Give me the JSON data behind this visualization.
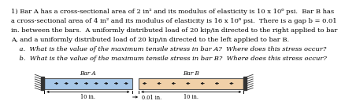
{
  "text_block": [
    "1) Bar A has a cross-sectional area of 2 in² and its modulus of elasticity is 10 x 10⁶ psi.  Bar B has",
    "a cross-sectional area of 4 in² and its modulus of elasticity is 16 x 10⁶ psi.  There is a gap b = 0.01",
    "in. between the bars.  A uniformly distributed load of 20 kip/in directed to the right applied to bar",
    "A, and a uniformly distributed load of 20 kip/in directed to the left applied to bar B.",
    "    a.  What is the value of the maximum tensile stress in bar A?  Where does this stress occur?",
    "    b.  What is the value of the maximum tensile stress in bar B?  Where does this stress occur?"
  ],
  "bar_A_color": "#a8c8e8",
  "bar_B_color": "#f0d0a8",
  "bar_A_label": "Bar A",
  "bar_B_label": "Bar B",
  "dim_label_A": "10 in.",
  "dim_label_gap": "0.01 in.",
  "dim_label_B": "10 in.",
  "wall_color": "#333333",
  "arrow_color": "#111111",
  "text_fontsize": 6.0,
  "label_fontsize": 5.2,
  "dim_fontsize": 4.8
}
